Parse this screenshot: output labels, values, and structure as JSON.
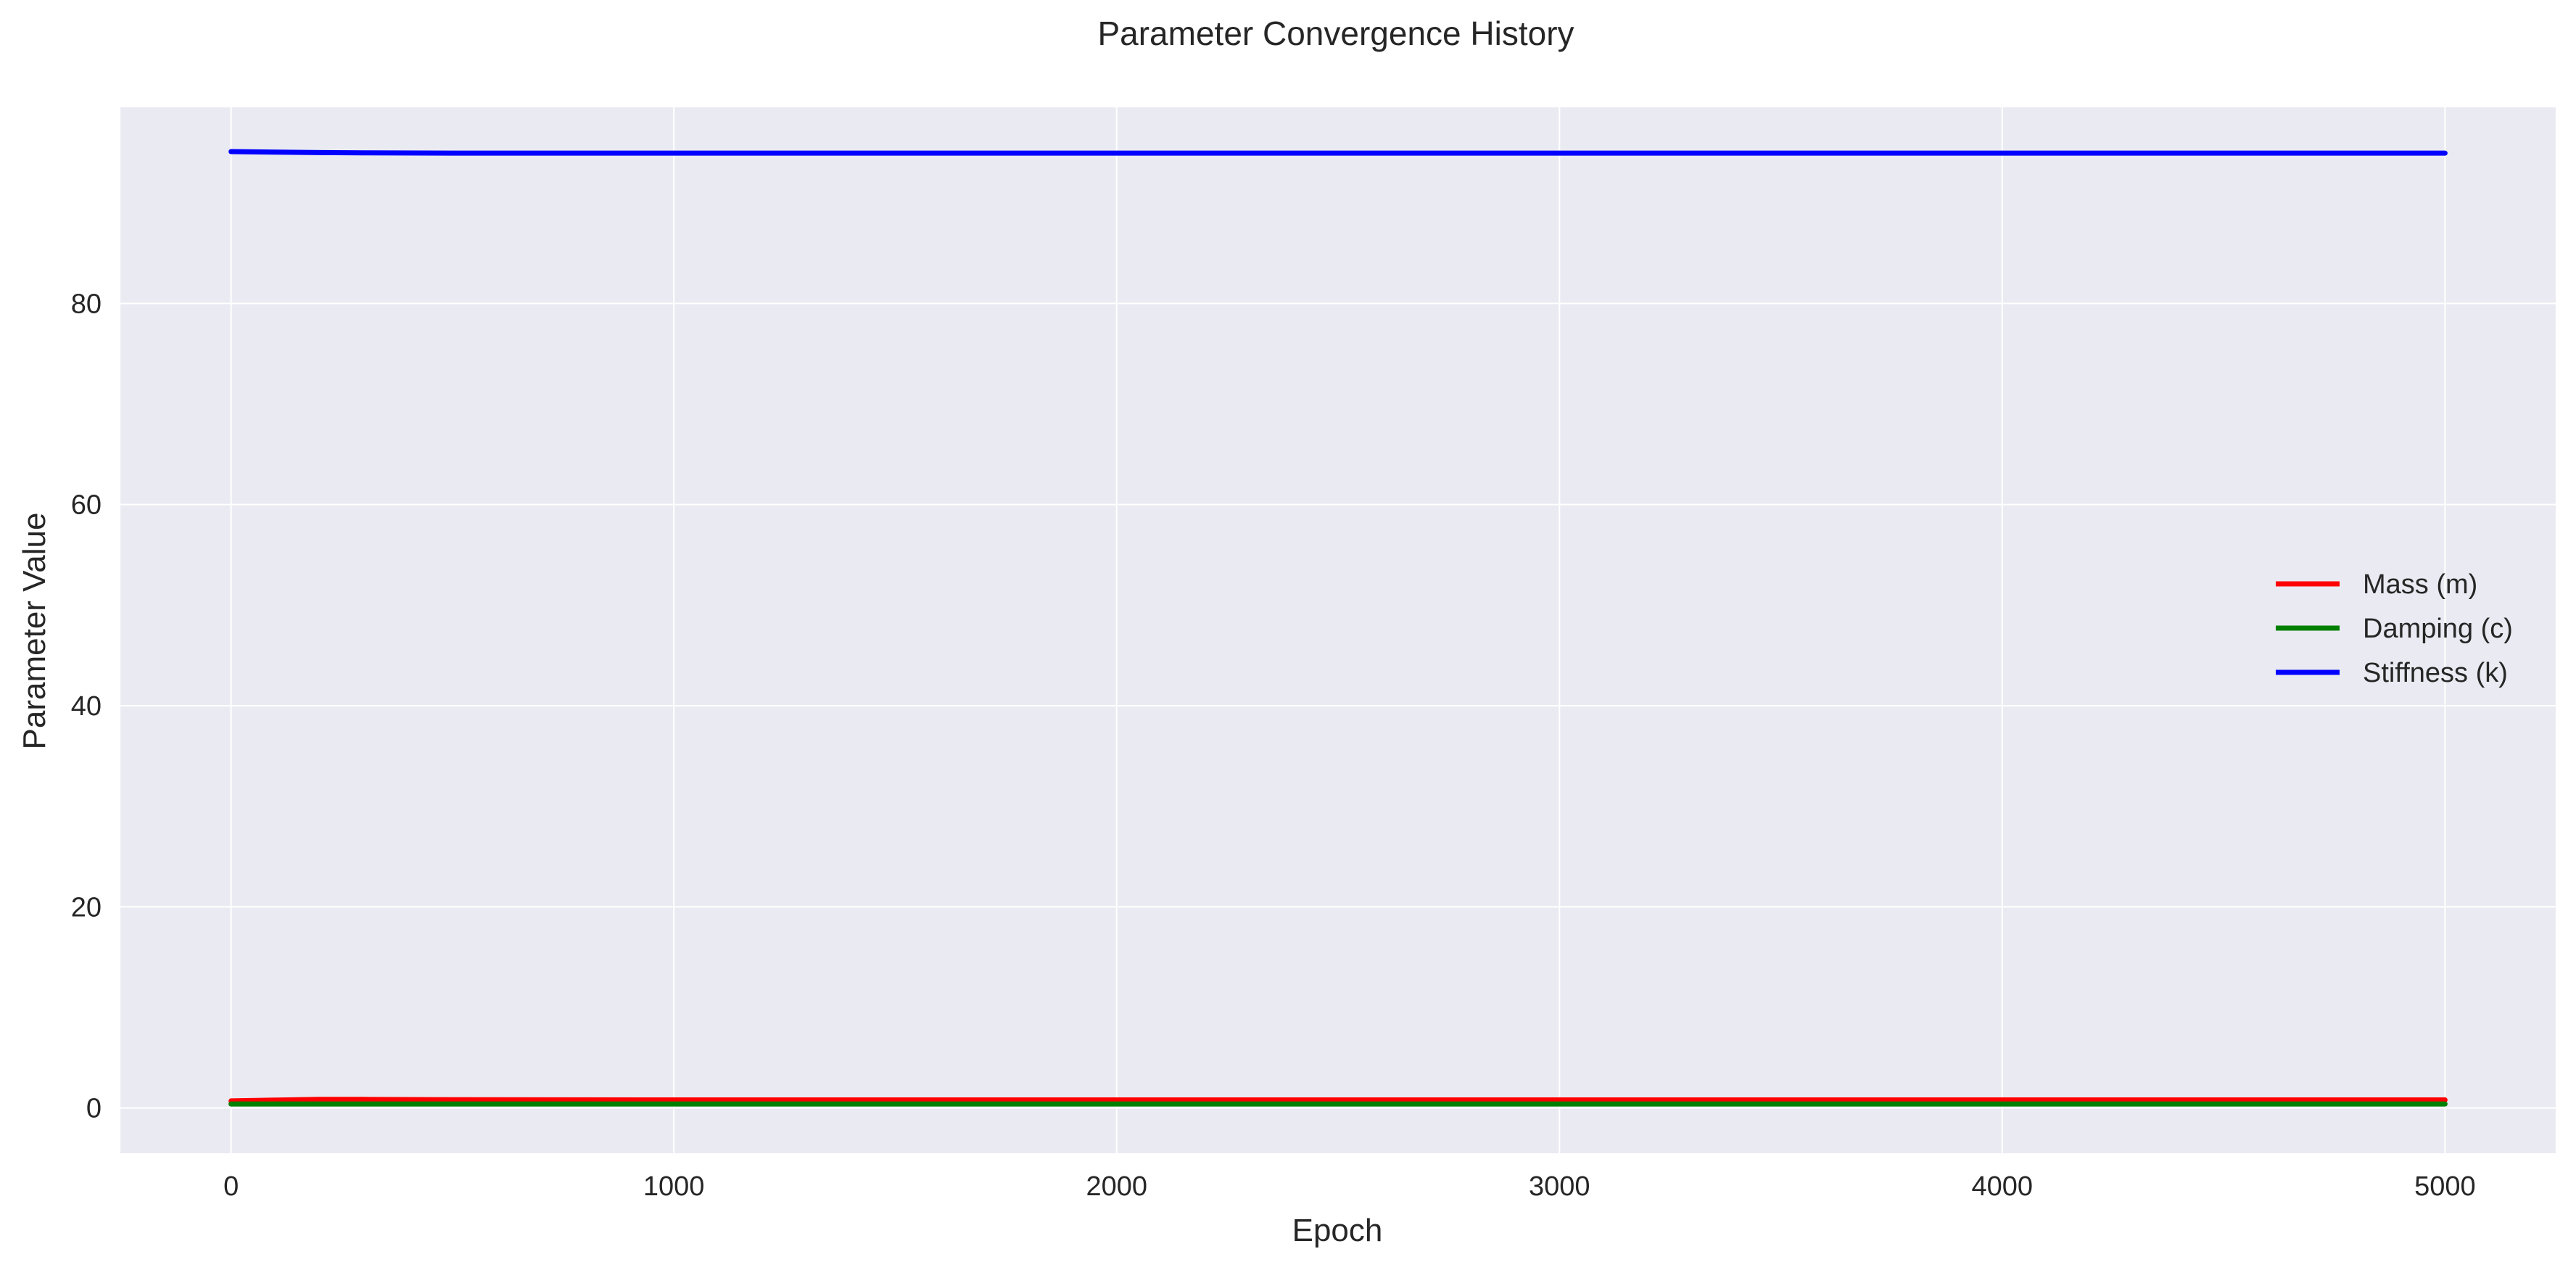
{
  "chart_data": {
    "type": "line",
    "title": "Parameter Convergence History",
    "xlabel": "Epoch",
    "ylabel": "Parameter Value",
    "xlim": [
      -250,
      5250
    ],
    "ylim": [
      -4.5,
      99.5
    ],
    "xticks": [
      0,
      1000,
      2000,
      3000,
      4000,
      5000
    ],
    "yticks": [
      0,
      20,
      40,
      60,
      80
    ],
    "grid": true,
    "legend_position": "center-right",
    "colors": {
      "background": "#eaeaf2",
      "grid": "#ffffff"
    },
    "series": [
      {
        "name": "Mass (m)",
        "color": "#ff0000",
        "x": [
          0,
          100,
          200,
          300,
          500,
          1000,
          2000,
          3000,
          4000,
          5000
        ],
        "y": [
          0.7,
          0.78,
          0.85,
          0.85,
          0.82,
          0.8,
          0.8,
          0.8,
          0.8,
          0.8
        ]
      },
      {
        "name": "Damping (c)",
        "color": "#008000",
        "x": [
          0,
          100,
          200,
          300,
          500,
          1000,
          2000,
          3000,
          4000,
          5000
        ],
        "y": [
          0.4,
          0.4,
          0.4,
          0.4,
          0.4,
          0.4,
          0.4,
          0.4,
          0.4,
          0.4
        ]
      },
      {
        "name": "Stiffness (k)",
        "color": "#0000ff",
        "x": [
          0,
          100,
          200,
          300,
          500,
          1000,
          2000,
          3000,
          4000,
          5000
        ],
        "y": [
          95.1,
          95.05,
          95.0,
          94.98,
          94.95,
          94.95,
          94.95,
          94.95,
          94.95,
          94.95
        ]
      }
    ]
  }
}
